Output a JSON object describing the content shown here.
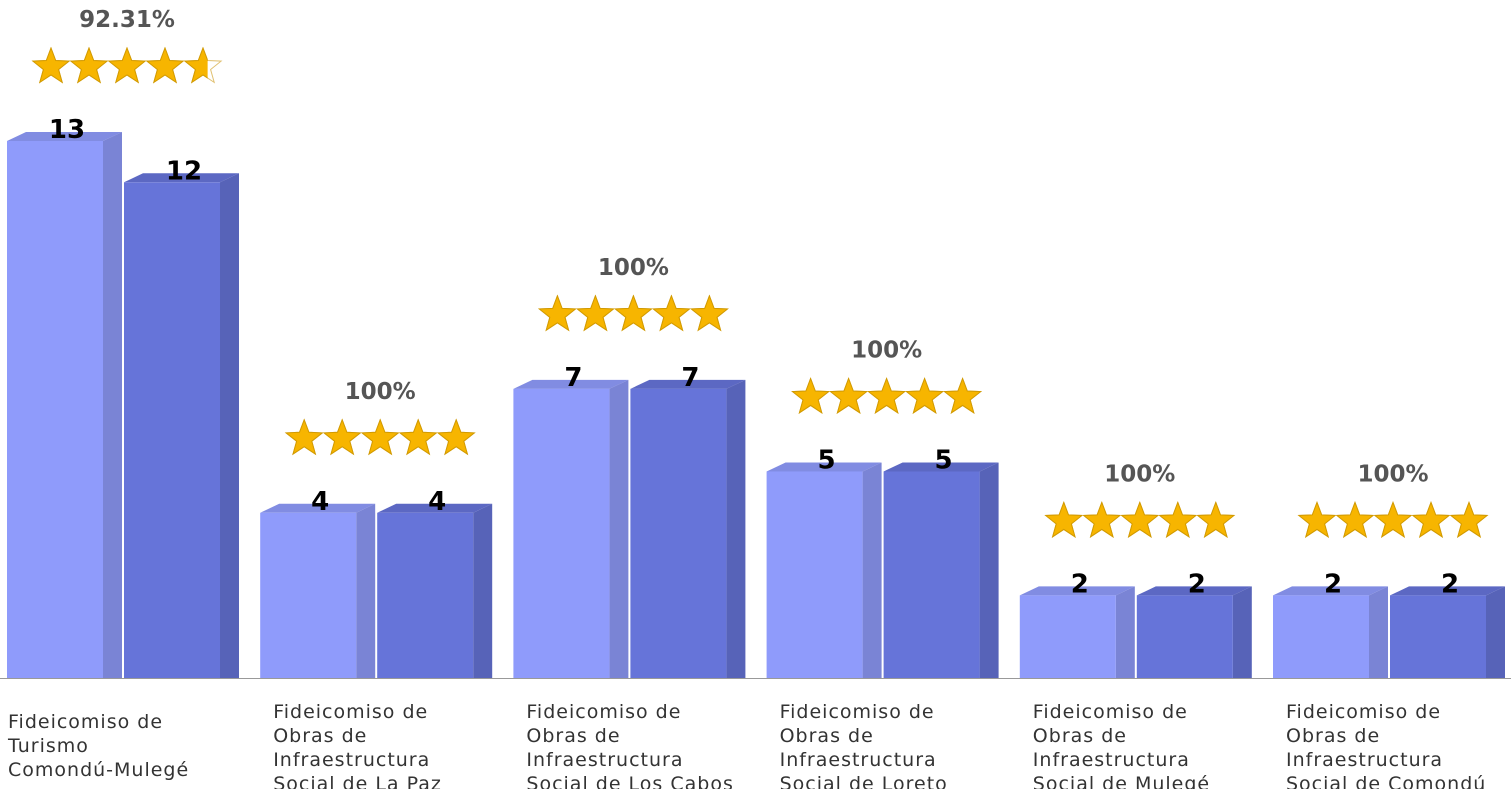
{
  "chart_data": {
    "type": "bar3d",
    "categories": [
      [
        "Fideicomiso de",
        "Turismo",
        "Comondú-Mulegé"
      ],
      [
        "Fideicomiso de",
        "Obras de",
        "Infraestructura",
        "Social de La Paz"
      ],
      [
        "Fideicomiso de",
        "Obras de",
        "Infraestructura",
        "Social de Los Cabos"
      ],
      [
        "Fideicomiso de",
        "Obras de",
        "Infraestructura",
        "Social de Loreto"
      ],
      [
        "Fideicomiso de",
        "Obras de",
        "Infraestructura",
        "Social de Mulegé"
      ],
      [
        "Fideicomiso de",
        "Obras de",
        "Infraestructura",
        "Social de Comondú"
      ]
    ],
    "series": [
      {
        "color": "#8f9bfb",
        "values": [
          13,
          4,
          7,
          5,
          2,
          2
        ]
      },
      {
        "color": "#6674d9",
        "values": [
          12,
          4,
          7,
          5,
          2,
          2
        ]
      }
    ],
    "percentages": [
      92.31,
      100,
      100,
      100,
      100,
      100
    ],
    "percentage_labels": [
      "92.31%",
      "100%",
      "100%",
      "100%",
      "100%",
      "100%"
    ],
    "star_color": "#f7b500"
  }
}
